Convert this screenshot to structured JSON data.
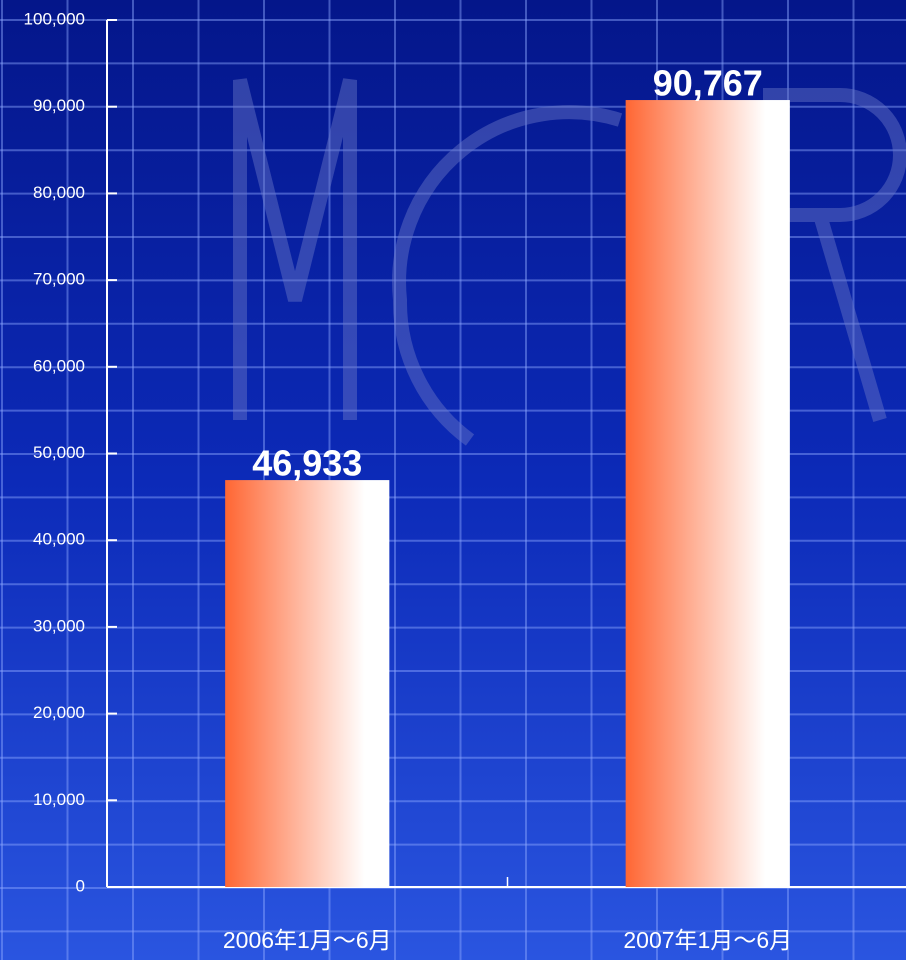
{
  "chart_data": {
    "type": "bar",
    "categories": [
      "2006年1月～6月",
      "2007年1月～6月"
    ],
    "values": [
      46933,
      90767
    ],
    "value_labels": [
      "46,933",
      "90,767"
    ],
    "color": "#ff6633",
    "ylim": [
      0,
      100000
    ],
    "yticks": [
      0,
      {
        "value": 10000,
        "label": "10,000"
      },
      {
        "value": 20000,
        "label": "20,000"
      },
      {
        "value": 30000,
        "label": "30,000"
      },
      {
        "value": 40000,
        "label": "40,000"
      },
      {
        "value": 50000,
        "label": "50,000"
      },
      {
        "value": 60000,
        "label": "60,000"
      },
      {
        "value": 70000,
        "label": "70,000"
      },
      {
        "value": 80000,
        "label": "80,000"
      },
      {
        "value": 90000,
        "label": "90,000"
      },
      {
        "value": 100000,
        "label": "100,000"
      }
    ]
  }
}
